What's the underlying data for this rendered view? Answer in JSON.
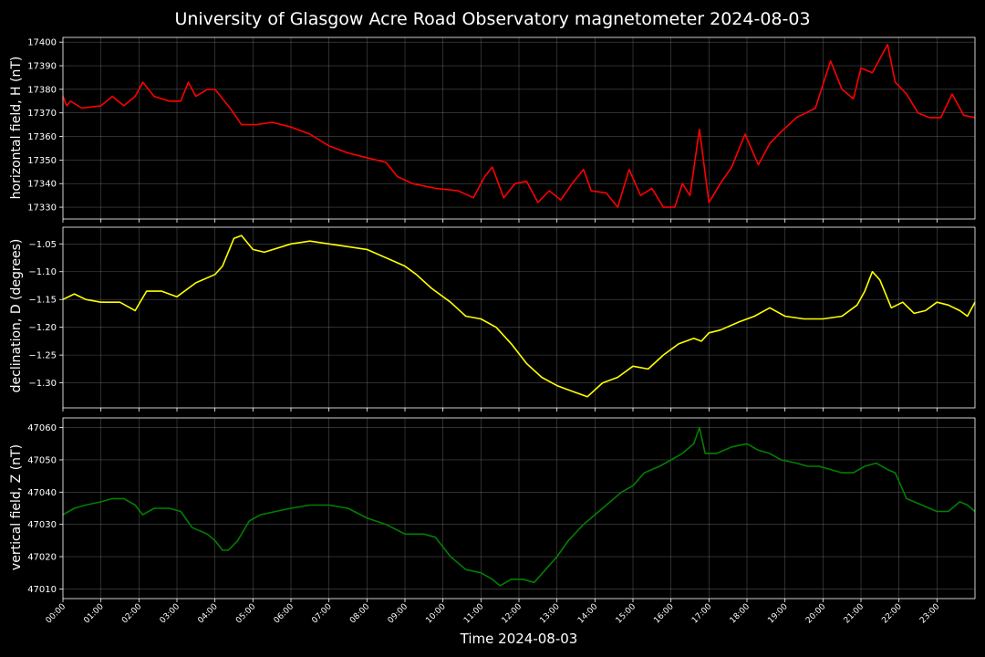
{
  "title": "University of Glasgow Acre Road Observatory magnetometer 2024-08-03",
  "xlabel": "Time 2024-08-03",
  "chart_data": {
    "type": "line",
    "x_ticks": [
      "00:00",
      "01:00",
      "02:00",
      "03:00",
      "04:00",
      "05:00",
      "06:00",
      "07:00",
      "08:00",
      "09:00",
      "10:00",
      "11:00",
      "12:00",
      "13:00",
      "14:00",
      "15:00",
      "16:00",
      "17:00",
      "18:00",
      "19:00",
      "20:00",
      "21:00",
      "22:00",
      "23:00"
    ],
    "xlim": [
      0,
      24
    ],
    "grid": true,
    "background": "#000000",
    "panels": [
      {
        "ylabel": "horizontal field, H (nT)",
        "color": "#ff0000",
        "ylim": [
          17325,
          17402
        ],
        "y_ticks": [
          "17330",
          "17340",
          "17350",
          "17360",
          "17370",
          "17380",
          "17390",
          "17400"
        ],
        "x": [
          0,
          0.1,
          0.2,
          0.5,
          1.0,
          1.3,
          1.6,
          1.9,
          2.1,
          2.4,
          2.8,
          3.1,
          3.3,
          3.5,
          3.8,
          4.0,
          4.4,
          4.7,
          5.1,
          5.5,
          6.0,
          6.5,
          7.0,
          7.5,
          8.0,
          8.5,
          8.8,
          9.2,
          9.8,
          10.4,
          10.8,
          11.1,
          11.3,
          11.6,
          11.9,
          12.2,
          12.5,
          12.8,
          13.1,
          13.4,
          13.7,
          13.9,
          14.3,
          14.6,
          14.9,
          15.2,
          15.5,
          15.8,
          16.1,
          16.3,
          16.5,
          16.75,
          17.0,
          17.3,
          17.6,
          17.95,
          18.3,
          18.6,
          18.9,
          19.3,
          19.8,
          20.2,
          20.5,
          20.8,
          21.0,
          21.3,
          21.7,
          21.9,
          22.2,
          22.5,
          22.8,
          23.1,
          23.4,
          23.7,
          24.0
        ],
        "y": [
          17377,
          17373,
          17375,
          17372,
          17373,
          17377,
          17373,
          17377,
          17383,
          17377,
          17375,
          17375,
          17383,
          17377,
          17380,
          17380,
          17372,
          17365,
          17365,
          17366,
          17364,
          17361,
          17356,
          17353,
          17351,
          17349,
          17343,
          17340,
          17338,
          17337,
          17334,
          17343,
          17347,
          17334,
          17340,
          17341,
          17332,
          17337,
          17333,
          17340,
          17346,
          17337,
          17336,
          17330,
          17346,
          17335,
          17338,
          17330,
          17330,
          17340,
          17335,
          17363,
          17332,
          17340,
          17347,
          17361,
          17348,
          17357,
          17362,
          17368,
          17372,
          17392,
          17380,
          17376,
          17389,
          17387,
          17399,
          17383,
          17378,
          17370,
          17368,
          17368,
          17378,
          17369,
          17368
        ]
      },
      {
        "ylabel": "declination, D (degrees)",
        "color": "#ffff00",
        "ylim": [
          -1.345,
          -1.02
        ],
        "y_ticks": [
          "-1.05",
          "-1.10",
          "-1.15",
          "-1.20",
          "-1.25",
          "-1.30"
        ],
        "x": [
          0,
          0.3,
          0.6,
          1.0,
          1.5,
          1.9,
          2.2,
          2.6,
          3.0,
          3.5,
          4.0,
          4.2,
          4.5,
          4.7,
          5.0,
          5.3,
          6.0,
          6.5,
          7.0,
          7.5,
          8.0,
          8.5,
          9.0,
          9.3,
          9.7,
          10.2,
          10.6,
          11.0,
          11.4,
          11.8,
          12.2,
          12.6,
          13.0,
          13.4,
          13.8,
          14.2,
          14.6,
          15.0,
          15.4,
          15.8,
          16.2,
          16.6,
          16.8,
          17.0,
          17.3,
          17.8,
          18.2,
          18.6,
          19.0,
          19.5,
          20.0,
          20.5,
          20.9,
          21.1,
          21.3,
          21.5,
          21.8,
          22.1,
          22.4,
          22.7,
          23.0,
          23.3,
          23.6,
          23.8,
          24.0
        ],
        "y": [
          -1.15,
          -1.14,
          -1.15,
          -1.155,
          -1.155,
          -1.17,
          -1.135,
          -1.135,
          -1.145,
          -1.12,
          -1.105,
          -1.09,
          -1.04,
          -1.035,
          -1.06,
          -1.065,
          -1.05,
          -1.045,
          -1.05,
          -1.055,
          -1.06,
          -1.075,
          -1.09,
          -1.105,
          -1.13,
          -1.155,
          -1.18,
          -1.185,
          -1.2,
          -1.23,
          -1.265,
          -1.29,
          -1.305,
          -1.315,
          -1.325,
          -1.3,
          -1.29,
          -1.27,
          -1.275,
          -1.25,
          -1.23,
          -1.22,
          -1.225,
          -1.21,
          -1.205,
          -1.19,
          -1.18,
          -1.165,
          -1.18,
          -1.185,
          -1.185,
          -1.18,
          -1.16,
          -1.135,
          -1.1,
          -1.115,
          -1.165,
          -1.155,
          -1.175,
          -1.17,
          -1.155,
          -1.16,
          -1.17,
          -1.18,
          -1.155
        ]
      },
      {
        "ylabel": "vertical field, Z (nT)",
        "color": "#008000",
        "ylim": [
          47007,
          47063
        ],
        "y_ticks": [
          "47010",
          "47020",
          "47030",
          "47040",
          "47050",
          "47060"
        ],
        "x": [
          0,
          0.3,
          0.6,
          1.0,
          1.3,
          1.6,
          1.9,
          2.1,
          2.4,
          2.8,
          3.1,
          3.4,
          3.8,
          4.0,
          4.2,
          4.35,
          4.6,
          4.9,
          5.2,
          5.6,
          6.0,
          6.5,
          7.0,
          7.5,
          8.0,
          8.5,
          9.0,
          9.5,
          9.8,
          10.2,
          10.6,
          11.0,
          11.3,
          11.5,
          11.8,
          12.1,
          12.4,
          12.7,
          13.0,
          13.3,
          13.7,
          14.0,
          14.3,
          14.7,
          15.0,
          15.3,
          15.7,
          16.0,
          16.3,
          16.6,
          16.75,
          16.9,
          17.2,
          17.6,
          18.0,
          18.3,
          18.6,
          18.9,
          19.3,
          19.6,
          19.9,
          20.2,
          20.5,
          20.8,
          21.1,
          21.4,
          21.7,
          21.9,
          22.2,
          22.6,
          23.0,
          23.3,
          23.6,
          23.8,
          24.0
        ],
        "y": [
          47033,
          47035,
          47036,
          47037,
          47038,
          47038,
          47036,
          47033,
          47035,
          47035,
          47034,
          47029,
          47027,
          47025,
          47022,
          47022,
          47025,
          47031,
          47033,
          47034,
          47035,
          47036,
          47036,
          47035,
          47032,
          47030,
          47027,
          47027,
          47026,
          47020,
          47016,
          47015,
          47013,
          47011,
          47013,
          47013,
          47012,
          47016,
          47020,
          47025,
          47030,
          47033,
          47036,
          47040,
          47042,
          47046,
          47048,
          47050,
          47052,
          47055,
          47060,
          47052,
          47052,
          47054,
          47055,
          47053,
          47052,
          47050,
          47049,
          47048,
          47048,
          47047,
          47046,
          47046,
          47048,
          47049,
          47047,
          47046,
          47038,
          47036,
          47034,
          47034,
          47037,
          47036,
          47034
        ]
      }
    ]
  }
}
